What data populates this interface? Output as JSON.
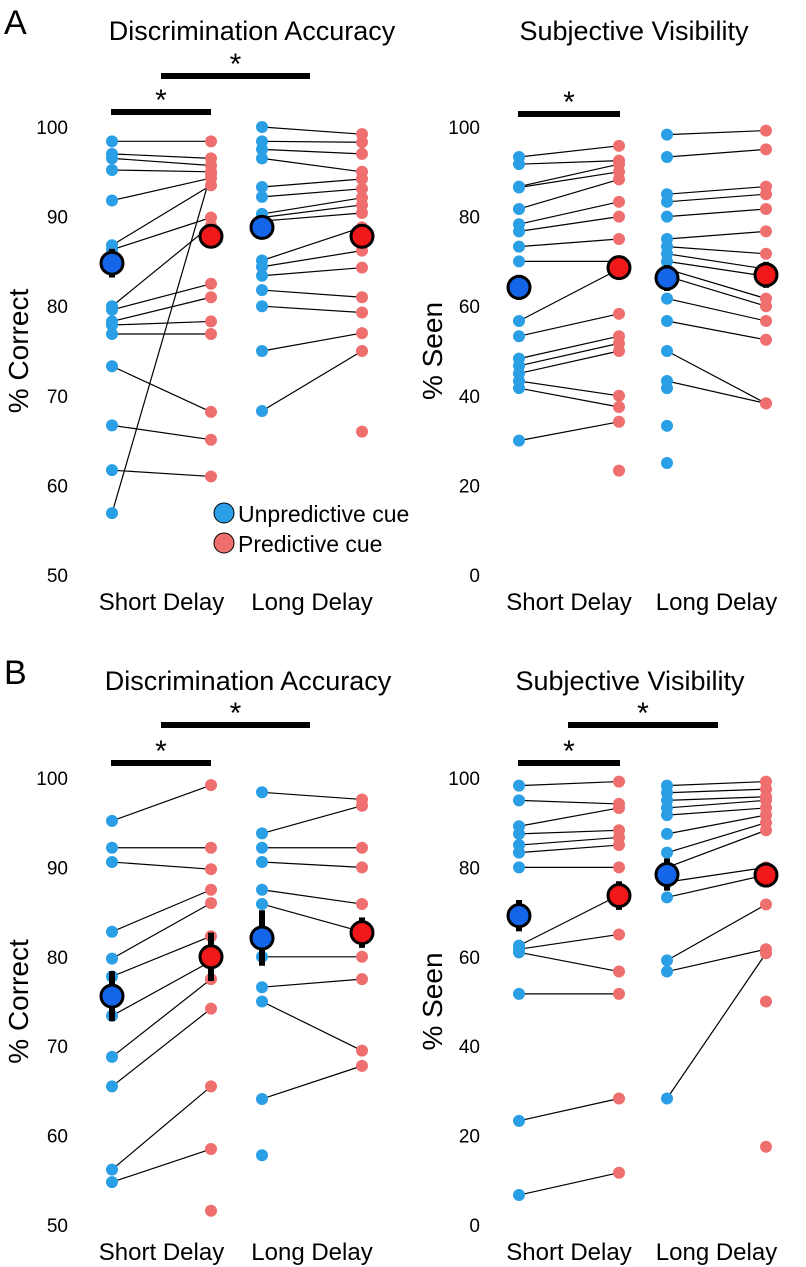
{
  "colors": {
    "unpredictive": "#2a9fe6",
    "predictive": "#ef6e6e",
    "mean_unpredictive": "#1565e8",
    "mean_predictive": "#f01818"
  },
  "panels": [
    {
      "letter": "A"
    },
    {
      "letter": "B"
    }
  ],
  "legend": {
    "unpredictive": "Unpredictive cue",
    "predictive": "Predictive cue"
  },
  "chart_data": [
    {
      "type": "scatter",
      "id": "A-acc",
      "panel": "A",
      "title": "Discrimination Accuracy",
      "ylabel": "% Correct",
      "categories": [
        "Short Delay",
        "Long Delay"
      ],
      "ylim": [
        50,
        100
      ],
      "yticks": [
        "50",
        "60",
        "70",
        "80",
        "90",
        "100"
      ],
      "significance": [
        "*",
        "*"
      ],
      "short_delay": {
        "unpredictive": [
          98.4,
          97,
          96.5,
          95.2,
          91.8,
          86.8,
          86.3,
          80,
          79.6,
          78.3,
          77.9,
          76.9,
          73.3,
          66.7,
          61.7,
          56.9
        ],
        "predictive": [
          98.4,
          96.5,
          95.7,
          95,
          94.3,
          93.5,
          89.9,
          89,
          82.5,
          81,
          78.3,
          76.9,
          68.2,
          65.1,
          61,
          94.8
        ],
        "mean_unpredictive": 84.8,
        "mean_predictive": 87.8,
        "err_unpredictive": 1.6,
        "err_predictive": 1.3
      },
      "long_delay": {
        "unpredictive": [
          100,
          98.4,
          97.5,
          96.5,
          93.3,
          92.2,
          90.3,
          89.9,
          89.5,
          85.1,
          84.4,
          83.4,
          81.8,
          80,
          75,
          68.3
        ],
        "predictive": [
          99.2,
          98.3,
          97,
          95,
          94.2,
          93.1,
          92.1,
          91.3,
          90.4,
          88.8,
          86.2,
          84.3,
          81,
          79.3,
          77,
          75,
          66
        ],
        "mean_unpredictive": 88.8,
        "mean_predictive": 87.8,
        "err_unpredictive": 1.2,
        "err_predictive": 1.3
      }
    },
    {
      "type": "scatter",
      "id": "A-vis",
      "panel": "A",
      "title": "Subjective Visibility",
      "ylabel": "% Seen",
      "categories": [
        "Short Delay",
        "Long Delay"
      ],
      "ylim": [
        0,
        100
      ],
      "yticks": [
        "0",
        "20",
        "40",
        "60",
        "80",
        "100"
      ],
      "significance": [
        "*"
      ],
      "short_delay": {
        "unpredictive": [
          93.3,
          91.7,
          86.7,
          86.5,
          81.7,
          78.3,
          76.7,
          73.3,
          70,
          56.7,
          53.3,
          48.3,
          46.7,
          45,
          43.3,
          41.7,
          30
        ],
        "predictive": [
          95.8,
          92.5,
          91.7,
          90,
          88.3,
          83.3,
          80,
          75,
          70,
          68.3,
          58.3,
          53.3,
          51.7,
          50,
          40,
          37.5,
          34.2,
          23.3
        ],
        "mean_unpredictive": 64.2,
        "mean_predictive": 68.6,
        "err_unpredictive": 2.8,
        "err_predictive": 2.6
      },
      "long_delay": {
        "unpredictive": [
          98.3,
          93.3,
          85,
          83.3,
          80,
          75,
          73.3,
          71.7,
          70,
          68.3,
          66.7,
          61.7,
          56.7,
          50,
          43.3,
          41.7,
          33.3,
          25
        ],
        "predictive": [
          99.2,
          95,
          86.7,
          85,
          81.7,
          76.7,
          71.7,
          68.3,
          66.7,
          61.7,
          60,
          56.7,
          52.5,
          38.3,
          38.3
        ],
        "mean_unpredictive": 66.3,
        "mean_predictive": 67,
        "err_unpredictive": 2.9,
        "err_predictive": 2.9
      }
    },
    {
      "type": "scatter",
      "id": "B-acc",
      "panel": "B",
      "title": "Discrimination Accuracy",
      "ylabel": "% Correct",
      "categories": [
        "Short Delay",
        "Long Delay"
      ],
      "ylim": [
        50,
        100
      ],
      "yticks": [
        "50",
        "60",
        "70",
        "80",
        "90",
        "100"
      ],
      "significance": [
        "*",
        "*"
      ],
      "short_delay": {
        "unpredictive": [
          95.2,
          92.2,
          90.6,
          82.8,
          79.8,
          77.8,
          73.4,
          68.8,
          65.5,
          56.2,
          54.8
        ],
        "predictive": [
          99.2,
          92.2,
          89.8,
          87.5,
          86,
          82.3,
          79.5,
          77.5,
          74.2,
          65.5,
          58.5,
          51.6
        ],
        "mean_unpredictive": 75.6,
        "mean_predictive": 80,
        "err_unpredictive": 2.8,
        "err_predictive": 2.7
      },
      "long_delay": {
        "unpredictive": [
          98.4,
          93.8,
          92.2,
          90.6,
          87.5,
          85.9,
          80,
          76.6,
          75,
          64.1,
          57.8
        ],
        "predictive": [
          97.6,
          96.9,
          92.2,
          90,
          85.9,
          82.8,
          80,
          77.5,
          69.5,
          67.8
        ],
        "mean_unpredictive": 82.1,
        "mean_predictive": 82.7,
        "err_unpredictive": 3.1,
        "err_predictive": 1.7
      }
    },
    {
      "type": "scatter",
      "id": "B-vis",
      "panel": "B",
      "title": "Subjective Visibility",
      "ylabel": "% Seen",
      "categories": [
        "Short Delay",
        "Long Delay"
      ],
      "ylim": [
        0,
        100
      ],
      "yticks": [
        "0",
        "20",
        "40",
        "60",
        "80",
        "100"
      ],
      "significance": [
        "*",
        "*"
      ],
      "short_delay": {
        "unpredictive": [
          98.3,
          95,
          89.2,
          87.5,
          85,
          83.3,
          80,
          62.5,
          61.7,
          61,
          51.7,
          23.3,
          6.7
        ],
        "predictive": [
          99.2,
          94.2,
          93.3,
          88.3,
          86.7,
          85,
          80,
          73.8,
          65,
          56.7,
          51.7,
          28.3,
          11.7
        ],
        "mean_unpredictive": 69.2,
        "mean_predictive": 73.7,
        "err_unpredictive": 3.5,
        "err_predictive": 3.2
      },
      "long_delay": {
        "unpredictive": [
          98.3,
          96.7,
          95,
          93.3,
          91.7,
          87.5,
          83.3,
          80,
          76.7,
          73.3,
          59.2,
          56.7,
          28.3
        ],
        "predictive": [
          99.2,
          97.5,
          95.8,
          95,
          93.3,
          91.7,
          90,
          88.3,
          80,
          78.3,
          71.7,
          61.7,
          60.8,
          50,
          17.5
        ],
        "mean_unpredictive": 78.4,
        "mean_predictive": 78.3,
        "err_unpredictive": 3.6,
        "err_predictive": 2.8
      }
    }
  ]
}
